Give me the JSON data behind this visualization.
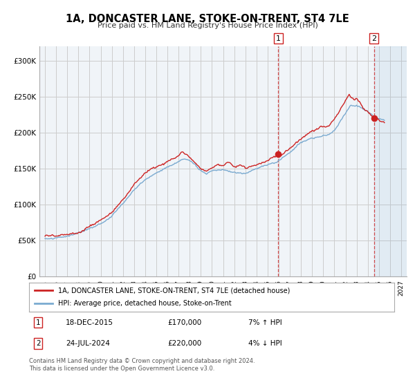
{
  "title": "1A, DONCASTER LANE, STOKE-ON-TRENT, ST4 7LE",
  "subtitle": "Price paid vs. HM Land Registry's House Price Index (HPI)",
  "ylim": [
    0,
    320000
  ],
  "yticks": [
    0,
    50000,
    100000,
    150000,
    200000,
    250000,
    300000
  ],
  "ytick_labels": [
    "£0",
    "£50K",
    "£100K",
    "£150K",
    "£200K",
    "£250K",
    "£300K"
  ],
  "xmin_year": 1994.5,
  "xmax_year": 2027.5,
  "xticks_years": [
    1995,
    1996,
    1997,
    1998,
    1999,
    2000,
    2001,
    2002,
    2003,
    2004,
    2005,
    2006,
    2007,
    2008,
    2009,
    2010,
    2011,
    2012,
    2013,
    2014,
    2015,
    2016,
    2017,
    2018,
    2019,
    2020,
    2021,
    2022,
    2023,
    2024,
    2025,
    2026,
    2027
  ],
  "hpi_color": "#7aaad0",
  "price_color": "#cc2222",
  "dot_color": "#cc2222",
  "vline_color": "#cc2222",
  "grid_color": "#cccccc",
  "background_color": "#ffffff",
  "plot_bg_color": "#f0f4f8",
  "legend_label_price": "1A, DONCASTER LANE, STOKE-ON-TRENT, ST4 7LE (detached house)",
  "legend_label_hpi": "HPI: Average price, detached house, Stoke-on-Trent",
  "annotation1_num": "1",
  "annotation1_date": "18-DEC-2015",
  "annotation1_price": "£170,000",
  "annotation1_hpi": "7% ↑ HPI",
  "annotation1_year": 2015.96,
  "annotation1_value": 170000,
  "annotation2_num": "2",
  "annotation2_date": "24-JUL-2024",
  "annotation2_price": "£220,000",
  "annotation2_hpi": "4% ↓ HPI",
  "annotation2_year": 2024.56,
  "annotation2_value": 220000,
  "footnote1": "Contains HM Land Registry data © Crown copyright and database right 2024.",
  "footnote2": "This data is licensed under the Open Government Licence v3.0."
}
